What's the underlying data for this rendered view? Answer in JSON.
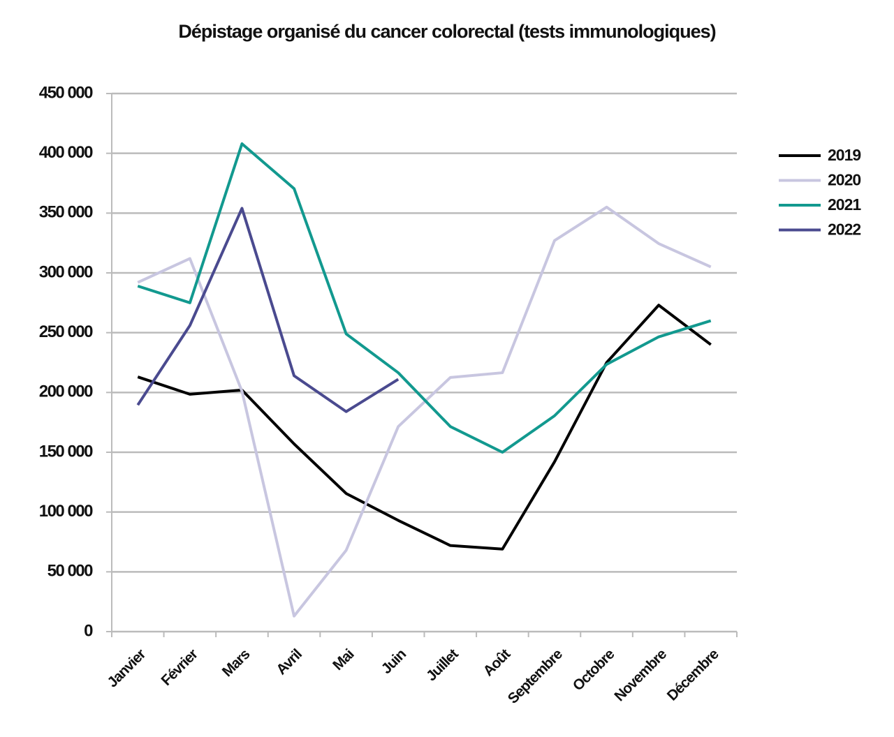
{
  "chart_data": {
    "type": "line",
    "title": "Dépistage organisé du cancer colorectal (tests immunologiques)",
    "categories": [
      "Janvier",
      "Février",
      "Mars",
      "Avril",
      "Mai",
      "Juin",
      "Juillet",
      "Août",
      "Septembre",
      "Octobre",
      "Novembre",
      "Décembre"
    ],
    "series": [
      {
        "name": "2019",
        "color": "#000000",
        "values": [
          213000,
          198500,
          202000,
          157000,
          115500,
          93000,
          72000,
          69000,
          142000,
          225000,
          273000,
          240000
        ]
      },
      {
        "name": "2020",
        "color": "#c8c6e0",
        "values": [
          292000,
          312000,
          201000,
          13000,
          68000,
          171500,
          212500,
          216500,
          327000,
          355000,
          324500,
          305000
        ]
      },
      {
        "name": "2021",
        "color": "#12998f",
        "values": [
          289000,
          275000,
          408000,
          370500,
          249000,
          216500,
          171500,
          150000,
          180500,
          223500,
          246500,
          260000
        ]
      },
      {
        "name": "2022",
        "color": "#4a4a8f",
        "values": [
          189500,
          256000,
          354000,
          214000,
          184000,
          211000,
          null,
          null,
          null,
          null,
          null,
          null
        ]
      }
    ],
    "ylim": [
      0,
      450000
    ],
    "yticks": [
      0,
      {
        "value": 50000,
        "label": "50 000"
      },
      {
        "value": 100000,
        "label": "100 000"
      },
      {
        "value": 150000,
        "label": "150 000"
      },
      {
        "value": 200000,
        "label": "200 000"
      },
      {
        "value": 250000,
        "label": "250 000"
      },
      {
        "value": 300000,
        "label": "300 000"
      },
      {
        "value": 350000,
        "label": "350 000"
      },
      {
        "value": 400000,
        "label": "400 000"
      },
      {
        "value": 450000,
        "label": "450 000"
      }
    ],
    "grid": true,
    "legend": "right"
  }
}
